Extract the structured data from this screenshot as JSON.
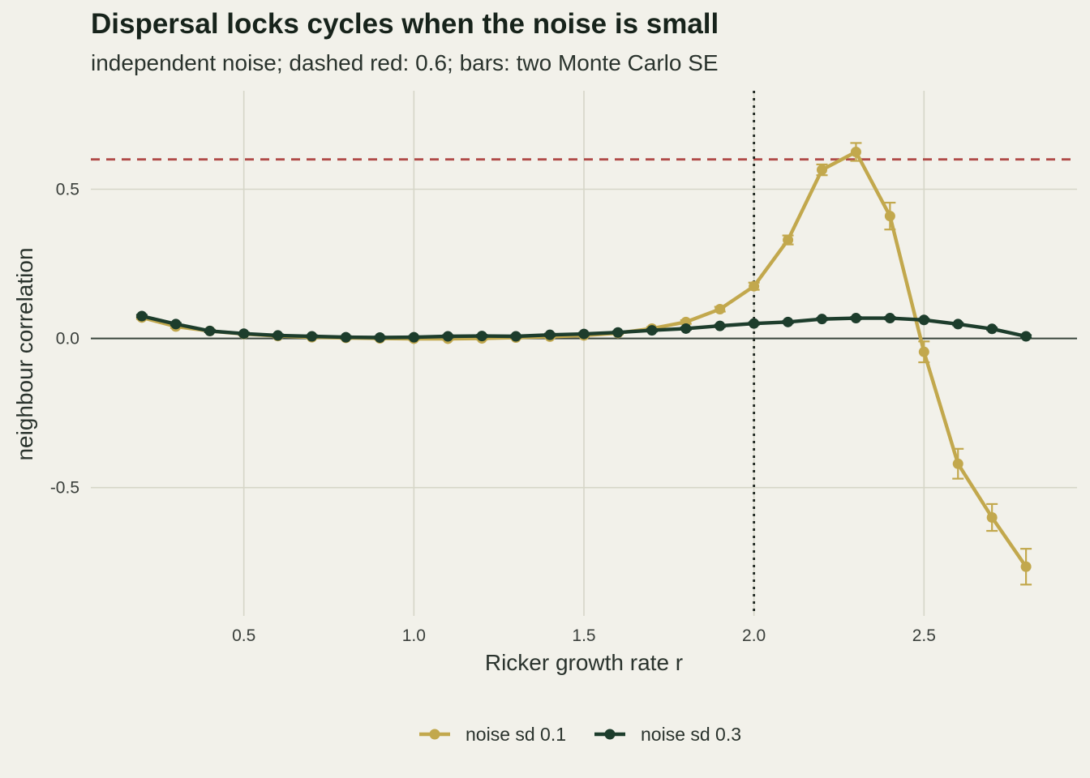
{
  "chart_data": {
    "type": "line",
    "title": "Dispersal locks cycles when the noise is small",
    "subtitle": "independent noise; dashed red: 0.6; bars: two Monte Carlo SE",
    "xlabel": "Ricker growth rate r",
    "ylabel": "neighbour correlation",
    "xlim": [
      0.05,
      2.95
    ],
    "ylim": [
      -0.93,
      0.83
    ],
    "xticks": [
      0.5,
      1.0,
      1.5,
      2.0,
      2.5
    ],
    "xtick_labels": [
      "0.5",
      "1.0",
      "1.5",
      "2.0",
      "2.5"
    ],
    "yticks": [
      0.5,
      0.0,
      -0.5
    ],
    "ytick_labels": [
      "0.5",
      "0.0",
      "-0.5"
    ],
    "grid": true,
    "legend_position": "bottom",
    "reference_lines": {
      "hline_dashed": 0.6,
      "hline_zero": 0.0,
      "vline_dotted": 2.0
    },
    "colors": {
      "background": "#f2f1ea",
      "grid": "#d6d6c8",
      "reference_dashed": "#b04a48",
      "zero_line": "#3a463d",
      "vline": "#1e2620"
    },
    "x": [
      0.2,
      0.3,
      0.4,
      0.5,
      0.6,
      0.7,
      0.8,
      0.9,
      1.0,
      1.1,
      1.2,
      1.3,
      1.4,
      1.5,
      1.6,
      1.7,
      1.8,
      1.9,
      2.0,
      2.1,
      2.2,
      2.3,
      2.4,
      2.5,
      2.6,
      2.7,
      2.8
    ],
    "series": [
      {
        "name": "noise sd 0.1",
        "color": "#c2a84d",
        "values": [
          0.07,
          0.04,
          0.025,
          0.015,
          0.008,
          0.004,
          0.002,
          0.0,
          -0.001,
          -0.001,
          0.0,
          0.003,
          0.006,
          0.01,
          0.018,
          0.033,
          0.055,
          0.098,
          0.175,
          0.33,
          0.565,
          0.625,
          0.41,
          -0.045,
          -0.42,
          -0.6,
          -0.765
        ],
        "error": [
          0.005,
          0.005,
          0.004,
          0.004,
          0.004,
          0.004,
          0.004,
          0.004,
          0.004,
          0.004,
          0.004,
          0.004,
          0.004,
          0.004,
          0.004,
          0.005,
          0.006,
          0.008,
          0.012,
          0.015,
          0.018,
          0.03,
          0.045,
          0.035,
          0.05,
          0.045,
          0.06
        ]
      },
      {
        "name": "noise sd 0.3",
        "color": "#1d3d2c",
        "values": [
          0.075,
          0.048,
          0.025,
          0.016,
          0.01,
          0.007,
          0.004,
          0.003,
          0.004,
          0.007,
          0.008,
          0.007,
          0.012,
          0.015,
          0.02,
          0.027,
          0.033,
          0.042,
          0.05,
          0.055,
          0.065,
          0.068,
          0.068,
          0.062,
          0.048,
          0.032,
          0.007
        ],
        "error": [
          0.004,
          0.004,
          0.004,
          0.004,
          0.004,
          0.004,
          0.004,
          0.004,
          0.004,
          0.004,
          0.004,
          0.004,
          0.004,
          0.004,
          0.004,
          0.004,
          0.004,
          0.004,
          0.004,
          0.004,
          0.004,
          0.004,
          0.004,
          0.004,
          0.004,
          0.004,
          0.004
        ]
      }
    ]
  }
}
